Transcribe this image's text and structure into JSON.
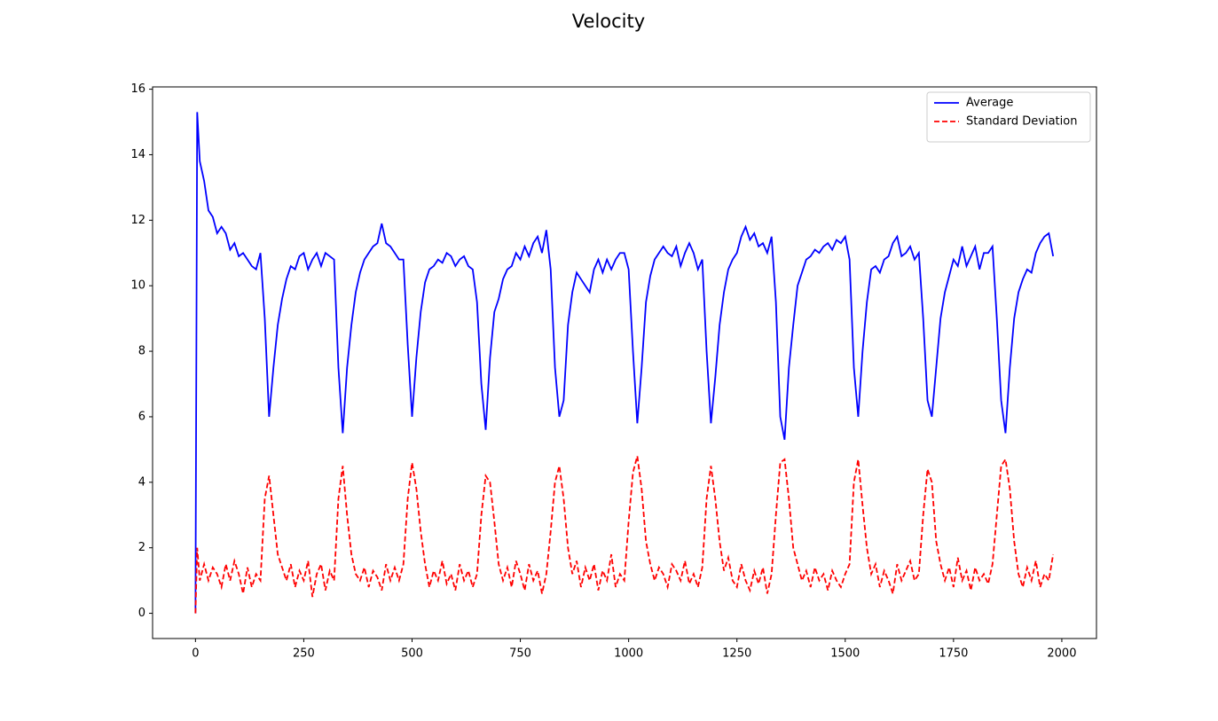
{
  "chart_data": {
    "type": "line",
    "title": "Velocity",
    "x": [
      0,
      4,
      10,
      20,
      30,
      40,
      50,
      60,
      70,
      80,
      90,
      100,
      110,
      120,
      130,
      140,
      150,
      160,
      170,
      180,
      190,
      200,
      210,
      220,
      230,
      240,
      250,
      260,
      270,
      280,
      290,
      300,
      310,
      320,
      330,
      340,
      350,
      360,
      370,
      380,
      390,
      400,
      410,
      420,
      430,
      440,
      450,
      460,
      470,
      480,
      490,
      500,
      510,
      520,
      530,
      540,
      550,
      560,
      570,
      580,
      590,
      600,
      610,
      620,
      630,
      640,
      650,
      660,
      670,
      680,
      690,
      700,
      710,
      720,
      730,
      740,
      750,
      760,
      770,
      780,
      790,
      800,
      810,
      820,
      830,
      840,
      850,
      860,
      870,
      880,
      890,
      900,
      910,
      920,
      930,
      940,
      950,
      960,
      970,
      980,
      990,
      1000,
      1010,
      1020,
      1030,
      1040,
      1050,
      1060,
      1070,
      1080,
      1090,
      1100,
      1110,
      1120,
      1130,
      1140,
      1150,
      1160,
      1170,
      1180,
      1190,
      1200,
      1210,
      1220,
      1230,
      1240,
      1250,
      1260,
      1270,
      1280,
      1290,
      1300,
      1310,
      1320,
      1330,
      1340,
      1350,
      1360,
      1370,
      1380,
      1390,
      1400,
      1410,
      1420,
      1430,
      1440,
      1450,
      1460,
      1470,
      1480,
      1490,
      1500,
      1510,
      1520,
      1530,
      1540,
      1550,
      1560,
      1570,
      1580,
      1590,
      1600,
      1610,
      1620,
      1630,
      1640,
      1650,
      1660,
      1670,
      1680,
      1690,
      1700,
      1710,
      1720,
      1730,
      1740,
      1750,
      1760,
      1770,
      1780,
      1790,
      1800,
      1810,
      1820,
      1830,
      1840,
      1850,
      1860,
      1870,
      1880,
      1890,
      1900,
      1910,
      1920,
      1930,
      1940,
      1950,
      1960,
      1970,
      1980
    ],
    "series": [
      {
        "name": "Average",
        "color": "#0000ff",
        "dash": "solid",
        "values": [
          0,
          15.3,
          13.8,
          13.2,
          12.3,
          12.1,
          11.6,
          11.8,
          11.6,
          11.1,
          11.3,
          10.9,
          11.0,
          10.8,
          10.6,
          10.5,
          11.0,
          9.0,
          6.0,
          7.5,
          8.8,
          9.6,
          10.2,
          10.6,
          10.5,
          10.9,
          11.0,
          10.5,
          10.8,
          11.0,
          10.6,
          11.0,
          10.9,
          10.8,
          7.5,
          5.5,
          7.5,
          8.8,
          9.8,
          10.4,
          10.8,
          11.0,
          11.2,
          11.3,
          11.9,
          11.3,
          11.2,
          11.0,
          10.8,
          10.8,
          8.2,
          6.0,
          7.8,
          9.2,
          10.1,
          10.5,
          10.6,
          10.8,
          10.7,
          11.0,
          10.9,
          10.6,
          10.8,
          10.9,
          10.6,
          10.5,
          9.5,
          7.0,
          5.6,
          7.8,
          9.2,
          9.6,
          10.2,
          10.5,
          10.6,
          11.0,
          10.8,
          11.2,
          10.9,
          11.3,
          11.5,
          11.0,
          11.7,
          10.5,
          7.5,
          6.0,
          6.5,
          8.8,
          9.8,
          10.4,
          10.2,
          10.0,
          9.8,
          10.5,
          10.8,
          10.4,
          10.8,
          10.5,
          10.8,
          11.0,
          11.0,
          10.5,
          8.0,
          5.8,
          7.5,
          9.5,
          10.3,
          10.8,
          11.0,
          11.2,
          11.0,
          10.9,
          11.2,
          10.6,
          11.0,
          11.3,
          11.0,
          10.5,
          10.8,
          8.0,
          5.8,
          7.2,
          8.8,
          9.8,
          10.5,
          10.8,
          11.0,
          11.5,
          11.8,
          11.4,
          11.6,
          11.2,
          11.3,
          11.0,
          11.5,
          9.5,
          6.0,
          5.3,
          7.5,
          8.8,
          10.0,
          10.4,
          10.8,
          10.9,
          11.1,
          11.0,
          11.2,
          11.3,
          11.1,
          11.4,
          11.3,
          11.5,
          10.8,
          7.5,
          6.0,
          8.0,
          9.5,
          10.5,
          10.6,
          10.4,
          10.8,
          10.9,
          11.3,
          11.5,
          10.9,
          11.0,
          11.2,
          10.8,
          11.0,
          9.0,
          6.5,
          6.0,
          7.5,
          9.0,
          9.8,
          10.3,
          10.8,
          10.6,
          11.2,
          10.6,
          10.9,
          11.2,
          10.5,
          11.0,
          11.0,
          11.2,
          9.0,
          6.5,
          5.5,
          7.5,
          9.0,
          9.8,
          10.2,
          10.5,
          10.4,
          11.0,
          11.3,
          11.5,
          11.6,
          10.9
        ]
      },
      {
        "name": "Standard Deviation",
        "color": "#ff0000",
        "dash": "dashed",
        "values": [
          0,
          2.0,
          1.0,
          1.5,
          1.0,
          1.4,
          1.2,
          0.8,
          1.5,
          1.0,
          1.6,
          1.2,
          0.6,
          1.4,
          0.8,
          1.2,
          1.0,
          3.5,
          4.2,
          3.0,
          1.8,
          1.4,
          1.0,
          1.5,
          0.8,
          1.3,
          1.0,
          1.6,
          0.5,
          1.2,
          1.5,
          0.7,
          1.3,
          1.0,
          3.5,
          4.5,
          3.0,
          1.8,
          1.2,
          1.0,
          1.4,
          0.8,
          1.3,
          1.1,
          0.7,
          1.5,
          1.0,
          1.4,
          1.0,
          1.5,
          3.5,
          4.6,
          3.8,
          2.5,
          1.5,
          0.8,
          1.3,
          1.0,
          1.6,
          0.9,
          1.2,
          0.7,
          1.5,
          1.0,
          1.3,
          0.8,
          1.2,
          3.0,
          4.2,
          4.0,
          2.8,
          1.5,
          1.0,
          1.4,
          0.8,
          1.6,
          1.2,
          0.7,
          1.5,
          1.0,
          1.3,
          0.6,
          1.2,
          2.5,
          4.0,
          4.5,
          3.5,
          2.0,
          1.2,
          1.6,
          0.8,
          1.4,
          1.0,
          1.5,
          0.7,
          1.3,
          1.0,
          1.8,
          0.8,
          1.2,
          1.0,
          2.8,
          4.3,
          4.8,
          3.8,
          2.2,
          1.5,
          1.0,
          1.4,
          1.2,
          0.8,
          1.5,
          1.3,
          1.0,
          1.6,
          0.9,
          1.2,
          0.8,
          1.4,
          3.5,
          4.5,
          3.5,
          2.2,
          1.3,
          1.7,
          1.0,
          0.8,
          1.5,
          1.0,
          0.7,
          1.3,
          0.9,
          1.4,
          0.6,
          1.2,
          3.0,
          4.6,
          4.7,
          3.5,
          2.0,
          1.5,
          1.0,
          1.3,
          0.8,
          1.4,
          1.0,
          1.2,
          0.7,
          1.3,
          1.0,
          0.8,
          1.2,
          1.5,
          4.0,
          4.7,
          3.3,
          2.0,
          1.2,
          1.5,
          0.8,
          1.3,
          1.0,
          0.6,
          1.5,
          1.0,
          1.3,
          1.6,
          1.0,
          1.2,
          3.0,
          4.4,
          4.0,
          2.2,
          1.5,
          1.0,
          1.4,
          0.8,
          1.7,
          1.0,
          1.3,
          0.7,
          1.4,
          1.0,
          1.2,
          0.9,
          1.5,
          3.0,
          4.5,
          4.7,
          3.8,
          2.2,
          1.2,
          0.8,
          1.4,
          1.0,
          1.6,
          0.8,
          1.2,
          1.0,
          1.8
        ]
      }
    ],
    "xlim": [
      -99,
      2080
    ],
    "ylim": [
      -0.77,
      16.07
    ],
    "xticks": [
      0,
      250,
      500,
      750,
      1000,
      1250,
      1500,
      1750,
      2000
    ],
    "yticks": [
      0,
      2,
      4,
      6,
      8,
      10,
      12,
      14,
      16
    ],
    "legend": "upper right",
    "grid": false
  }
}
